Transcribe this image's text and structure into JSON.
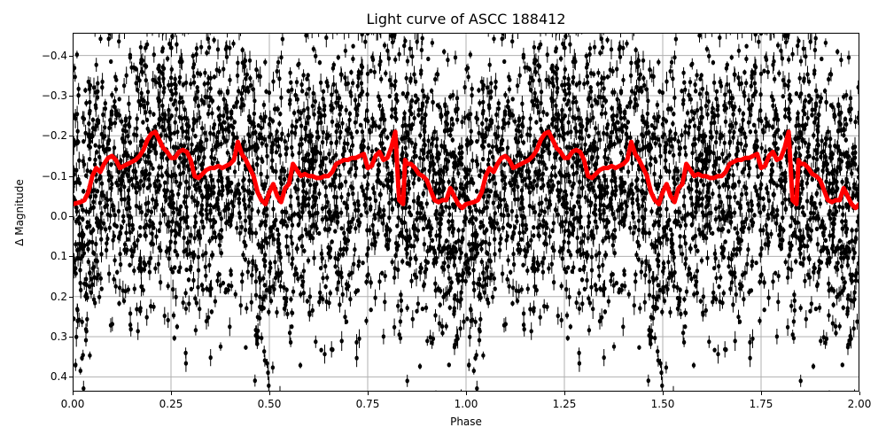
{
  "chart_data": {
    "type": "scatter",
    "title": "Light curve of ASCC 188412",
    "xlabel": "Phase",
    "ylabel": "Δ Magnitude",
    "xlim": [
      0.0,
      2.0
    ],
    "ylim": [
      0.44,
      -0.46
    ],
    "y_inverted": true,
    "grid": true,
    "x_ticks": [
      "0.00",
      "0.25",
      "0.50",
      "0.75",
      "1.00",
      "1.25",
      "1.50",
      "1.75",
      "2.00"
    ],
    "y_ticks": [
      "-0.4",
      "-0.3",
      "-0.2",
      "-0.1",
      "0.0",
      "0.1",
      "0.2",
      "0.3",
      "0.4"
    ],
    "series": [
      {
        "name": "observations",
        "style": "black points with vertical error bars",
        "color": "#000000",
        "description": "Dense scatter of several thousand points spanning roughly -0.45 to +0.44 mag across all phases, repeated over two cycles"
      },
      {
        "name": "binned mean",
        "style": "thick red line",
        "color": "#ff0000",
        "x": [
          0.0,
          0.02,
          0.03,
          0.04,
          0.05,
          0.06,
          0.07,
          0.08,
          0.09,
          0.1,
          0.11,
          0.12,
          0.13,
          0.14,
          0.15,
          0.16,
          0.17,
          0.18,
          0.19,
          0.2,
          0.21,
          0.22,
          0.23,
          0.24,
          0.25,
          0.26,
          0.27,
          0.28,
          0.29,
          0.3,
          0.31,
          0.32,
          0.33,
          0.34,
          0.35,
          0.36,
          0.37,
          0.38,
          0.39,
          0.4,
          0.41,
          0.42,
          0.43,
          0.44,
          0.45,
          0.46,
          0.47,
          0.48,
          0.49,
          0.5,
          0.51,
          0.52,
          0.53,
          0.54,
          0.55,
          0.56,
          0.57,
          0.58,
          0.59,
          0.6,
          0.61,
          0.62,
          0.63,
          0.64,
          0.65,
          0.66,
          0.67,
          0.68,
          0.69,
          0.7,
          0.71,
          0.72,
          0.73,
          0.74,
          0.75,
          0.76,
          0.77,
          0.78,
          0.79,
          0.8,
          0.81,
          0.82,
          0.83,
          0.84,
          0.845,
          0.85,
          0.86,
          0.87,
          0.88,
          0.89,
          0.9,
          0.91,
          0.92,
          0.93,
          0.94,
          0.95,
          0.96,
          0.97,
          0.98,
          0.99,
          1.0
        ],
        "values": [
          -0.03,
          -0.035,
          -0.04,
          -0.06,
          -0.1,
          -0.12,
          -0.11,
          -0.13,
          -0.145,
          -0.15,
          -0.14,
          -0.12,
          -0.125,
          -0.13,
          -0.135,
          -0.14,
          -0.15,
          -0.165,
          -0.19,
          -0.205,
          -0.21,
          -0.19,
          -0.17,
          -0.16,
          -0.145,
          -0.145,
          -0.16,
          -0.165,
          -0.16,
          -0.14,
          -0.1,
          -0.095,
          -0.105,
          -0.115,
          -0.12,
          -0.12,
          -0.125,
          -0.12,
          -0.125,
          -0.13,
          -0.14,
          -0.185,
          -0.155,
          -0.14,
          -0.12,
          -0.1,
          -0.06,
          -0.04,
          -0.03,
          -0.06,
          -0.08,
          -0.05,
          -0.035,
          -0.07,
          -0.08,
          -0.13,
          -0.115,
          -0.1,
          -0.105,
          -0.1,
          -0.1,
          -0.095,
          -0.095,
          -0.1,
          -0.1,
          -0.11,
          -0.13,
          -0.135,
          -0.14,
          -0.14,
          -0.145,
          -0.145,
          -0.15,
          -0.155,
          -0.12,
          -0.125,
          -0.15,
          -0.16,
          -0.14,
          -0.145,
          -0.17,
          -0.21,
          -0.04,
          -0.03,
          -0.14,
          -0.13,
          -0.13,
          -0.12,
          -0.105,
          -0.1,
          -0.09,
          -0.065,
          -0.04,
          -0.035,
          -0.04,
          -0.04,
          -0.07,
          -0.05,
          -0.03,
          -0.02,
          -0.03
        ]
      }
    ],
    "period_repeat": "Red curve and scatter repeat identically for phase 1.00–2.00"
  }
}
